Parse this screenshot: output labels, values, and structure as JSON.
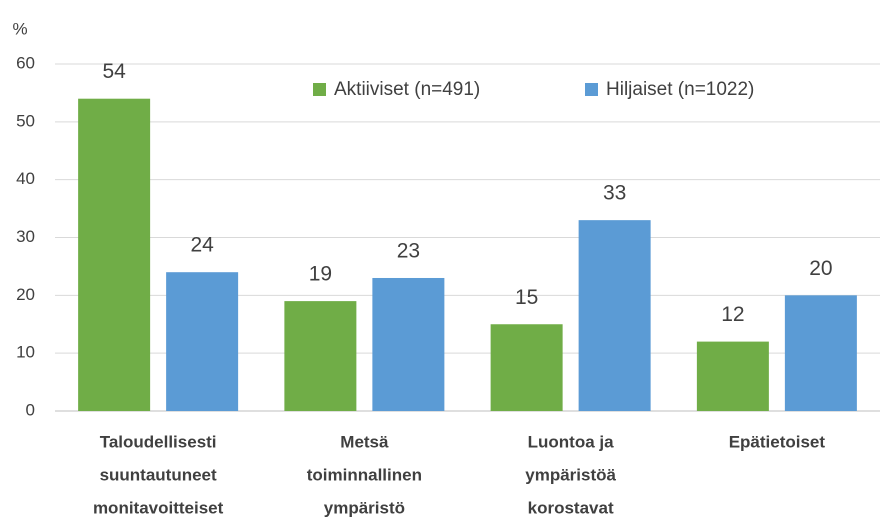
{
  "chart_data": {
    "type": "bar",
    "y_label": "%",
    "categories": [
      [
        "Taloudellisesti",
        "suuntautuneet",
        "monitavoitteiset"
      ],
      [
        "Metsä",
        "toiminnallinen",
        "ympäristö"
      ],
      [
        "Luontoa ja",
        "ympäristöä",
        "korostavat"
      ],
      [
        "Epätietoiset"
      ]
    ],
    "series": [
      {
        "name": "Aktiiviset (n=491)",
        "color": "#70ad47",
        "values": [
          54,
          19,
          15,
          12
        ]
      },
      {
        "name": "Hiljaiset (n=1022)",
        "color": "#5b9bd5",
        "values": [
          24,
          23,
          33,
          20
        ]
      }
    ],
    "ylim": [
      0,
      60
    ],
    "yticks": [
      0,
      10,
      20,
      30,
      40,
      50,
      60
    ],
    "grid": true,
    "legend": "top"
  }
}
